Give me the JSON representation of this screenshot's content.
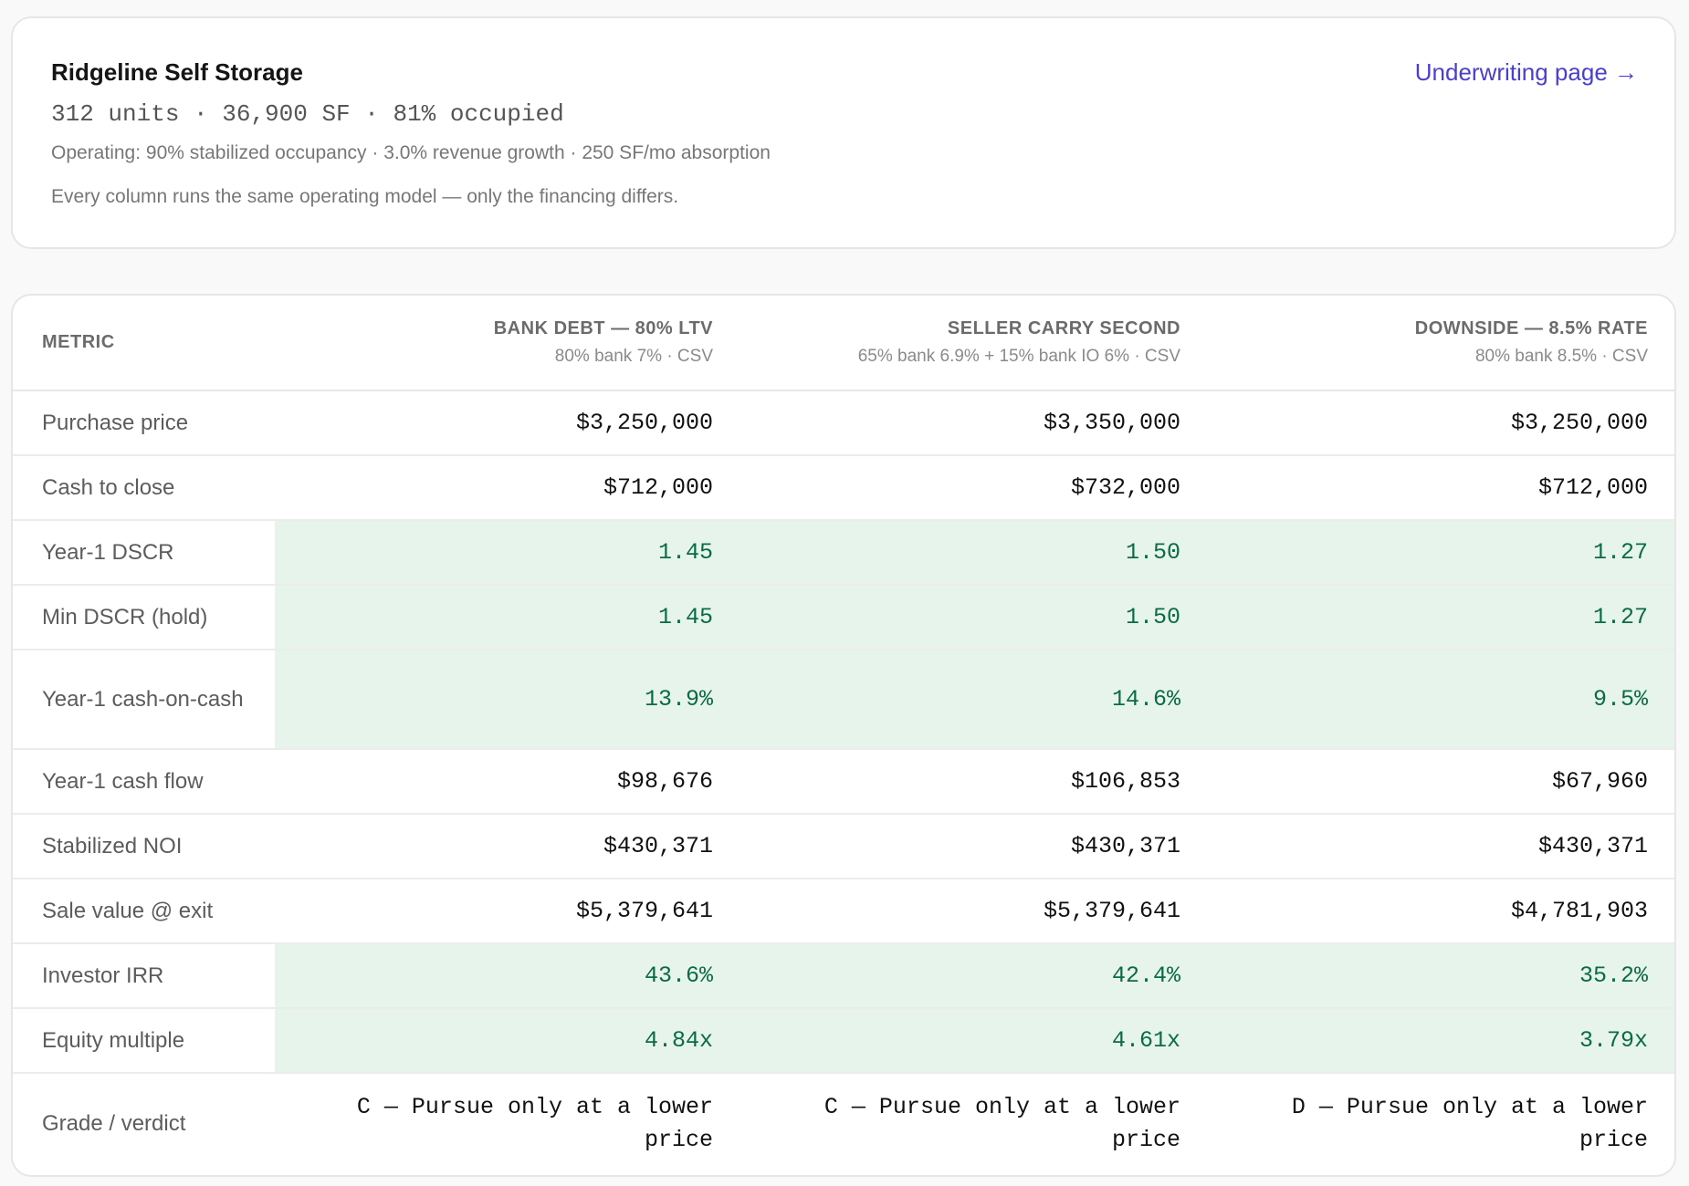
{
  "property": {
    "name": "Ridgeline Self Storage",
    "stats": "312 units · 36,900 SF · 81% occupied",
    "operating": "Operating: 90% stabilized occupancy · 3.0% revenue growth · 250 SF/mo absorption",
    "note": "Every column runs the same operating model — only the financing differs.",
    "link_label": "Underwriting page →"
  },
  "colors": {
    "highlight_bg": "#e6f4ec",
    "highlight_text": "#0b6b47",
    "link": "#4a3fcf"
  },
  "table": {
    "metric_header": "METRIC",
    "scenarios": [
      {
        "title": "BANK DEBT — 80% LTV",
        "subtitle": "80% bank 7% · CSV"
      },
      {
        "title": "SELLER CARRY SECOND",
        "subtitle": "65% bank 6.9% + 15% bank IO 6% · CSV"
      },
      {
        "title": "DOWNSIDE — 8.5% RATE",
        "subtitle": "80% bank 8.5% · CSV"
      }
    ],
    "rows": [
      {
        "label": "Purchase price",
        "values": [
          "$3,250,000",
          "$3,350,000",
          "$3,250,000"
        ]
      },
      {
        "label": "Cash to close",
        "values": [
          "$712,000",
          "$732,000",
          "$712,000"
        ]
      },
      {
        "label": "Year-1 DSCR",
        "values": [
          "1.45",
          "1.50",
          "1.27"
        ]
      },
      {
        "label": "Min DSCR (hold)",
        "values": [
          "1.45",
          "1.50",
          "1.27"
        ]
      },
      {
        "label": "Year-1 cash-on-cash",
        "values": [
          "13.9%",
          "14.6%",
          "9.5%"
        ]
      },
      {
        "label": "Year-1 cash flow",
        "values": [
          "$98,676",
          "$106,853",
          "$67,960"
        ]
      },
      {
        "label": "Stabilized NOI",
        "values": [
          "$430,371",
          "$430,371",
          "$430,371"
        ]
      },
      {
        "label": "Sale value @ exit",
        "values": [
          "$5,379,641",
          "$5,379,641",
          "$4,781,903"
        ]
      },
      {
        "label": "Investor IRR",
        "values": [
          "43.6%",
          "42.4%",
          "35.2%"
        ]
      },
      {
        "label": "Equity multiple",
        "values": [
          "4.84x",
          "4.61x",
          "3.79x"
        ]
      },
      {
        "label": "Grade / verdict",
        "values": [
          "C — Pursue only at a lower price",
          "C — Pursue only at a lower price",
          "D — Pursue only at a lower price"
        ]
      }
    ]
  }
}
